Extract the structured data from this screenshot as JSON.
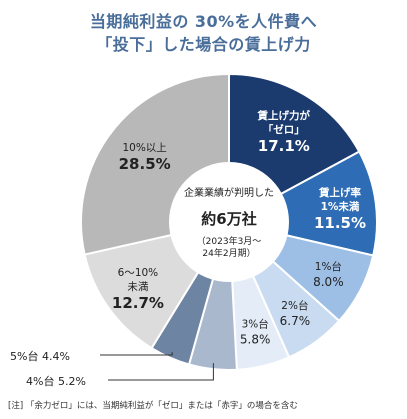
{
  "title_line1": "当期純利益の 30%を人件費へ",
  "title_line2": "「投下」した場合の賃上げ力",
  "note": "[注] 「余力ゼロ」には、当期純利益が「ゼロ」または「赤字」の場合を含む",
  "chart_data": {
    "type": "pie",
    "unit": "%",
    "center_text": [
      "企業業績が判明した",
      "約6万社",
      "（2023年3月～",
      "24年2月期）"
    ],
    "slices": [
      {
        "label": [
          "賃上げ力が",
          "「ゼロ」"
        ],
        "value": 17.1,
        "color": "#1b3a6e",
        "text_color": "#ffffff"
      },
      {
        "label": [
          "賃上げ率",
          "1%未満"
        ],
        "value": 11.5,
        "color": "#2e6db5",
        "text_color": "#ffffff"
      },
      {
        "label": [
          "1%台"
        ],
        "value": 8.0,
        "color": "#9dbfe6",
        "text_color": "#222222"
      },
      {
        "label": [
          "2%台"
        ],
        "value": 6.7,
        "color": "#c8dbf1",
        "text_color": "#222222"
      },
      {
        "label": [
          "3%台"
        ],
        "value": 5.8,
        "color": "#e4edf7",
        "text_color": "#222222"
      },
      {
        "label": [
          "4%台"
        ],
        "value": 5.2,
        "color": "#a9b8cc",
        "text_color": "#222222"
      },
      {
        "label": [
          "5%台"
        ],
        "value": 4.4,
        "color": "#6e84a3",
        "text_color": "#222222"
      },
      {
        "label": [
          "6～10%",
          "未満"
        ],
        "value": 12.7,
        "color": "#dcdcdc",
        "text_color": "#222222"
      },
      {
        "label": [
          "10%以上"
        ],
        "value": 28.5,
        "color": "#b8b8b8",
        "text_color": "#222222"
      }
    ]
  }
}
